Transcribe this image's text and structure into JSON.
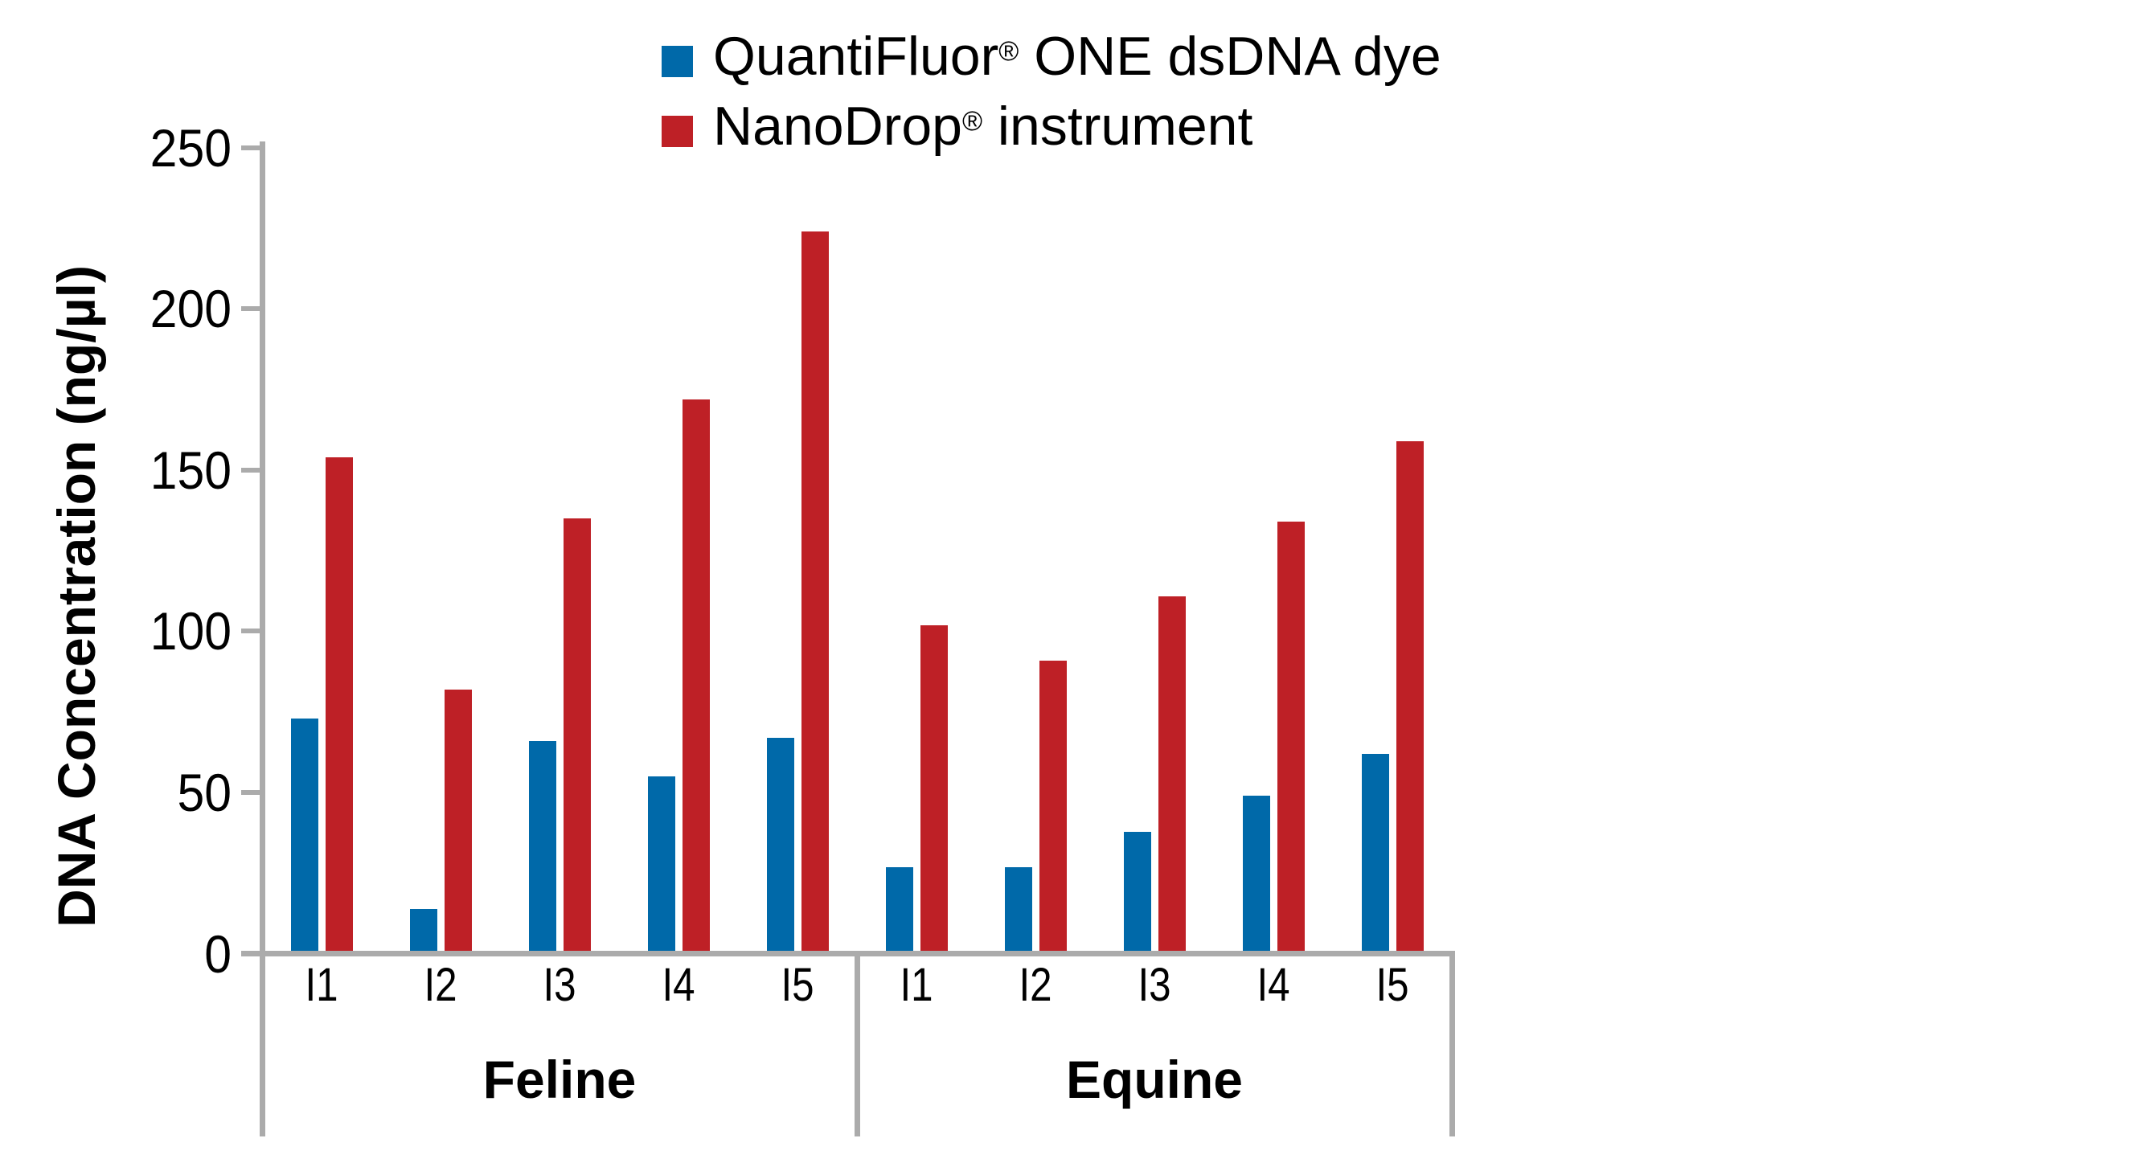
{
  "colors": {
    "quantifluor_blue": "#0069A9",
    "nanodrop_red": "#BE2026",
    "axis_gray": "#ABABAB",
    "text_black": "#000000",
    "background": "#FFFFFF"
  },
  "legend": {
    "items": [
      {
        "pre": "QuantiFluor",
        "reg": "®",
        "post": " ONE dsDNA dye",
        "color": "#0069A9"
      },
      {
        "pre": "NanoDrop",
        "reg": "®",
        "post": " instrument",
        "color": "#BE2026"
      }
    ]
  },
  "chart_data": {
    "type": "bar",
    "title": "",
    "xlabel": "",
    "ylabel": "DNA Concentration (ng/µl)",
    "ylim": [
      0,
      250
    ],
    "yticks": [
      0,
      50,
      100,
      150,
      200,
      250
    ],
    "grid": false,
    "legend_position": "top-center",
    "groups": [
      "Feline",
      "Equine"
    ],
    "categories": [
      "I1",
      "I2",
      "I3",
      "I4",
      "I5"
    ],
    "series": [
      {
        "name": "QuantiFluor® ONE dsDNA dye",
        "key": "quantifluor",
        "color": "#0069A9",
        "values": {
          "Feline": [
            72,
            13,
            65,
            54,
            66
          ],
          "Equine": [
            26,
            26,
            37,
            48,
            61
          ]
        }
      },
      {
        "name": "NanoDrop® instrument",
        "key": "nanodrop",
        "color": "#BE2026",
        "values": {
          "Feline": [
            153,
            81,
            134,
            171,
            223
          ],
          "Equine": [
            101,
            90,
            110,
            133,
            158
          ]
        }
      }
    ]
  }
}
